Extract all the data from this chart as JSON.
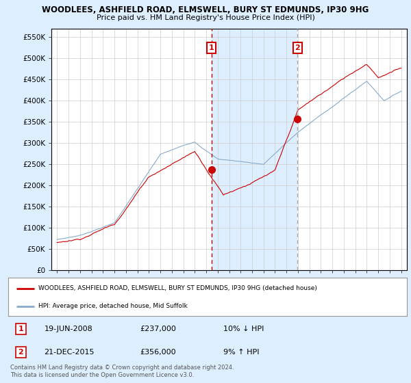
{
  "title": "WOODLEES, ASHFIELD ROAD, ELMSWELL, BURY ST EDMUNDS, IP30 9HG",
  "subtitle": "Price paid vs. HM Land Registry's House Price Index (HPI)",
  "legend_line1": "WOODLEES, ASHFIELD ROAD, ELMSWELL, BURY ST EDMUNDS, IP30 9HG (detached house)",
  "legend_line2": "HPI: Average price, detached house, Mid Suffolk",
  "footer": "Contains HM Land Registry data © Crown copyright and database right 2024.\nThis data is licensed under the Open Government Licence v3.0.",
  "annotation1": {
    "label": "1",
    "date": "19-JUN-2008",
    "price": "£237,000",
    "hpi": "10% ↓ HPI"
  },
  "annotation2": {
    "label": "2",
    "date": "21-DEC-2015",
    "price": "£356,000",
    "hpi": "9% ↑ HPI"
  },
  "sale1_x": 2008.46,
  "sale2_x": 2015.97,
  "sale1_y": 237000,
  "sale2_y": 356000,
  "vline1_x": 2008.46,
  "vline2_x": 2015.97,
  "ylim": [
    0,
    570000
  ],
  "xlim": [
    1994.5,
    2025.5
  ],
  "yticks": [
    0,
    50000,
    100000,
    150000,
    200000,
    250000,
    300000,
    350000,
    400000,
    450000,
    500000,
    550000
  ],
  "ytick_labels": [
    "£0",
    "£50K",
    "£100K",
    "£150K",
    "£200K",
    "£250K",
    "£300K",
    "£350K",
    "£400K",
    "£450K",
    "£500K",
    "£550K"
  ],
  "xticks": [
    1995,
    1996,
    1997,
    1998,
    1999,
    2000,
    2001,
    2002,
    2003,
    2004,
    2005,
    2006,
    2007,
    2008,
    2009,
    2010,
    2011,
    2012,
    2013,
    2014,
    2015,
    2016,
    2017,
    2018,
    2019,
    2020,
    2021,
    2022,
    2023,
    2024,
    2025
  ],
  "red_color": "#cc0000",
  "blue_color": "#88aacc",
  "shade_color": "#ddeeff",
  "bg_color": "#ddeeff",
  "plot_bg": "#ffffff",
  "grid_color": "#cccccc",
  "vline1_color": "#cc0000",
  "vline2_color": "#aaaaaa",
  "marker_color": "#cc0000",
  "box_color": "#cc0000"
}
